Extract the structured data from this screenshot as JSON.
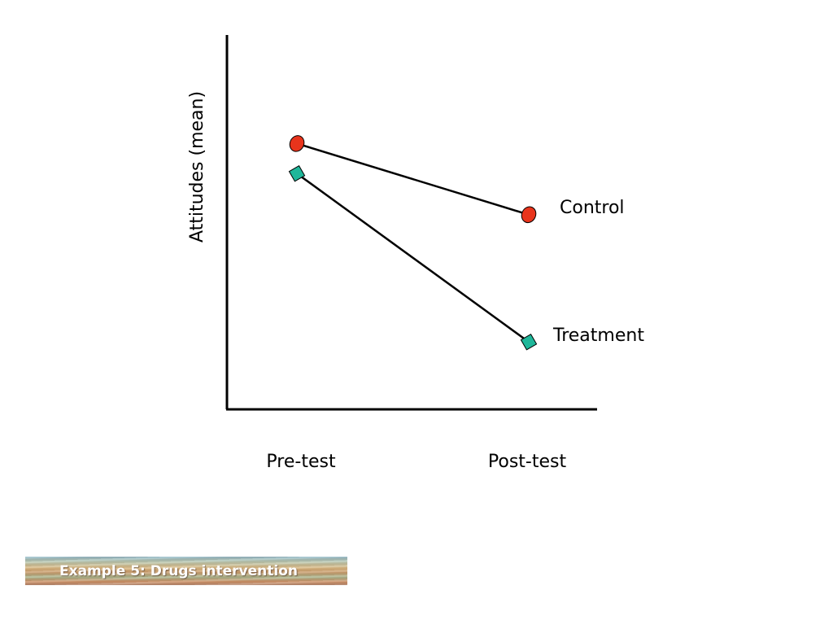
{
  "chart_data": {
    "type": "line",
    "categories": [
      "Pre-test",
      "Post-test"
    ],
    "ylabel": "Attitudes (mean)",
    "xlabel": "",
    "ylim": [
      0,
      10
    ],
    "grid": false,
    "series": [
      {
        "name": "Control",
        "values": [
          7.1,
          5.2
        ],
        "marker": "circle",
        "color": "#e8341c"
      },
      {
        "name": "Treatment",
        "values": [
          6.3,
          1.8
        ],
        "marker": "diamond",
        "color": "#1fb79a"
      }
    ]
  },
  "footer": {
    "label": "Example 5: Drugs intervention"
  }
}
